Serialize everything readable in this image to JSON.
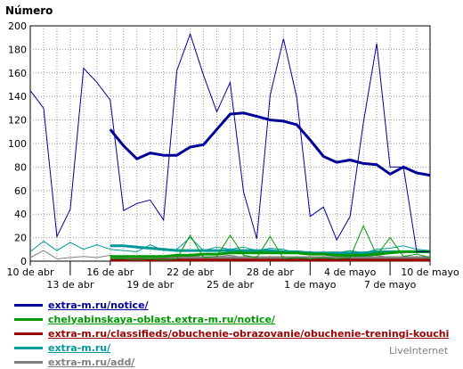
{
  "chart_data": {
    "type": "line",
    "ylabel": "Número",
    "ylim": [
      0,
      200
    ],
    "yticks": [
      0,
      20,
      40,
      60,
      80,
      100,
      120,
      140,
      160,
      180,
      200
    ],
    "grid": true,
    "xticks_row1": [
      "10 de abr",
      "16 de abr",
      "22 de abr",
      "28 de abr",
      "4 de mayo",
      "10 de mayo"
    ],
    "xticks_row2": [
      "13 de abr",
      "19 de abr",
      "25 de abr",
      "1 de mayo",
      "7 de mayo"
    ],
    "series": [
      {
        "name": "extra-m.ru/notice/",
        "color": "#000099",
        "start": 0,
        "values": [
          145,
          130,
          21,
          44,
          164,
          152,
          137,
          43,
          49,
          52,
          35,
          162,
          193,
          158,
          127,
          152,
          59,
          19,
          141,
          189,
          139,
          38,
          46,
          18,
          38,
          118,
          185,
          80,
          80,
          8,
          8
        ],
        "avg_start": 6,
        "avg": [
          112,
          98,
          87,
          92,
          90,
          90,
          97,
          99,
          112,
          125,
          126,
          123,
          120,
          119,
          116,
          103,
          89,
          84,
          86,
          83,
          82,
          74,
          80,
          75,
          73
        ]
      },
      {
        "name": "chelyabinskaya-oblast.extra-m.ru/notice/",
        "color": "#009900",
        "start": 6,
        "values": [
          2,
          2,
          1,
          2,
          1,
          2,
          22,
          3,
          4,
          22,
          5,
          3,
          21,
          2,
          3,
          2,
          3,
          2,
          3,
          30,
          5,
          20,
          4,
          6,
          3
        ],
        "avg_start": 6,
        "avg": [
          4,
          4,
          4,
          4,
          4,
          5,
          5,
          6,
          6,
          7,
          7,
          7,
          7,
          7,
          7,
          6,
          6,
          5,
          5,
          5,
          6,
          7,
          8,
          8,
          8
        ]
      },
      {
        "name": "extra-m.ru/classifieds/obuchenie-obrazovanie/obuchenie-treningi-kouchi",
        "color": "#990000",
        "start": 6,
        "values": [
          1,
          0,
          1,
          0,
          1,
          0,
          1,
          0,
          1,
          0,
          1,
          0,
          1,
          0,
          1,
          0,
          1,
          0,
          1,
          0,
          1,
          0,
          1,
          0,
          1
        ],
        "avg_start": 6,
        "avg": [
          1,
          1,
          1,
          1,
          1,
          1,
          1,
          1,
          1,
          1,
          1,
          1,
          1,
          1,
          1,
          1,
          1,
          1,
          1,
          1,
          1,
          1,
          1,
          1,
          1
        ]
      },
      {
        "name": "extra-m.ru/",
        "color": "#009999",
        "start": 0,
        "values": [
          8,
          17,
          9,
          16,
          10,
          14,
          10,
          9,
          8,
          14,
          9,
          10,
          20,
          9,
          12,
          10,
          12,
          9,
          11,
          10,
          7,
          8,
          6,
          7,
          9,
          7,
          10,
          11,
          13,
          10,
          9
        ],
        "avg_start": 6,
        "avg": [
          13,
          13,
          12,
          11,
          10,
          9,
          9,
          9,
          9,
          9,
          9,
          9,
          9,
          8,
          8,
          7,
          7,
          7,
          7,
          7,
          8,
          8,
          8,
          8,
          8
        ]
      },
      {
        "name": "extra-m.ru/add/",
        "color": "#808080",
        "start": 0,
        "values": [
          3,
          9,
          2,
          3,
          4,
          3,
          5,
          2,
          4,
          3,
          4,
          2,
          6,
          3,
          4,
          5,
          3,
          4,
          2,
          4,
          3,
          4,
          2,
          4,
          3,
          4,
          5,
          3,
          4,
          3,
          4
        ],
        "avg_start": 6,
        "avg": [
          3,
          3,
          3,
          3,
          3,
          3,
          3,
          3,
          3,
          3,
          3,
          3,
          3,
          3,
          3,
          3,
          3,
          3,
          3,
          3,
          3,
          3,
          3,
          3,
          3
        ]
      }
    ]
  },
  "watermark": "LiveInternet"
}
